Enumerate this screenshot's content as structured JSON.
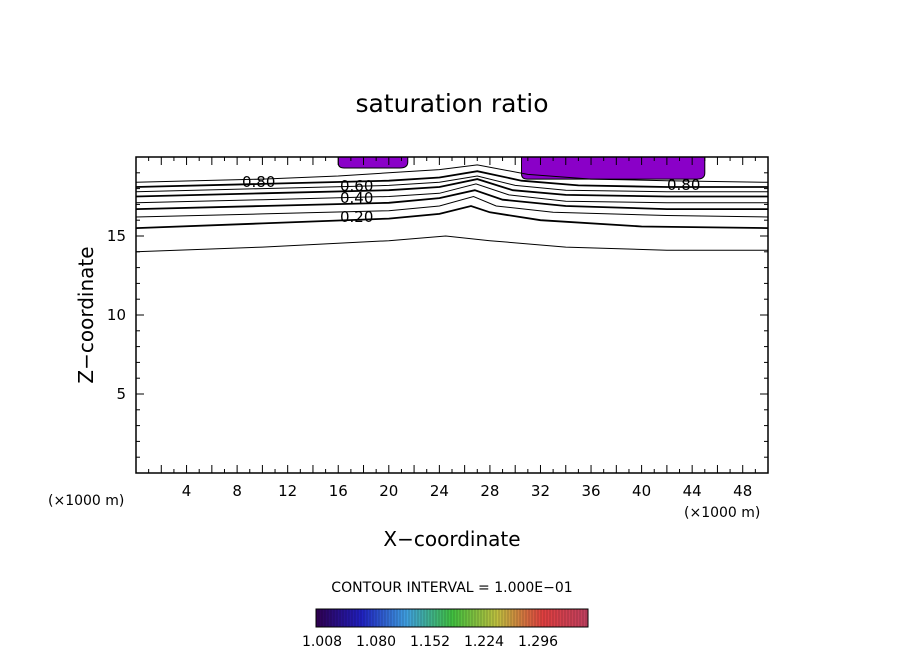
{
  "chart_data": {
    "type": "contour",
    "title": "saturation ratio",
    "xlabel": "X−coordinate",
    "ylabel": "Z−coordinate",
    "x_unit_left": "(×1000 m)",
    "x_unit_right": "(×1000 m)",
    "xlim": [
      0,
      50
    ],
    "ylim": [
      0,
      20
    ],
    "x_ticks": [
      4,
      8,
      12,
      16,
      20,
      24,
      28,
      32,
      36,
      40,
      44,
      48
    ],
    "y_ticks": [
      5,
      10,
      15
    ],
    "contour_interval_text": "CONTOUR INTERVAL = 1.000E−01",
    "contour_labels": [
      "0.80",
      "0.60",
      "0.40",
      "0.20",
      "0.80"
    ],
    "contours": [
      {
        "level": 0.1,
        "points": [
          [
            0,
            14.0
          ],
          [
            10,
            14.3
          ],
          [
            20,
            14.7
          ],
          [
            24.5,
            15.0
          ],
          [
            28,
            14.7
          ],
          [
            34,
            14.3
          ],
          [
            42,
            14.1
          ],
          [
            50,
            14.1
          ]
        ]
      },
      {
        "level": 0.2,
        "points": [
          [
            0,
            15.5
          ],
          [
            10,
            15.8
          ],
          [
            20,
            16.1
          ],
          [
            24,
            16.4
          ],
          [
            26.5,
            16.9
          ],
          [
            28,
            16.5
          ],
          [
            32,
            16.0
          ],
          [
            40,
            15.6
          ],
          [
            50,
            15.5
          ]
        ]
      },
      {
        "level": 0.3,
        "points": [
          [
            0,
            16.2
          ],
          [
            10,
            16.4
          ],
          [
            20,
            16.6
          ],
          [
            24,
            16.9
          ],
          [
            26.7,
            17.5
          ],
          [
            28.5,
            16.9
          ],
          [
            33,
            16.5
          ],
          [
            42,
            16.3
          ],
          [
            50,
            16.2
          ]
        ]
      },
      {
        "level": 0.4,
        "points": [
          [
            0,
            16.7
          ],
          [
            10,
            16.9
          ],
          [
            20,
            17.1
          ],
          [
            24,
            17.4
          ],
          [
            26.8,
            17.9
          ],
          [
            29,
            17.3
          ],
          [
            34,
            16.9
          ],
          [
            42,
            16.7
          ],
          [
            50,
            16.7
          ]
        ]
      },
      {
        "level": 0.5,
        "points": [
          [
            0,
            17.1
          ],
          [
            10,
            17.3
          ],
          [
            20,
            17.5
          ],
          [
            24,
            17.7
          ],
          [
            26.9,
            18.3
          ],
          [
            29.5,
            17.6
          ],
          [
            34,
            17.2
          ],
          [
            42,
            17.1
          ],
          [
            50,
            17.1
          ]
        ]
      },
      {
        "level": 0.6,
        "points": [
          [
            0,
            17.5
          ],
          [
            10,
            17.7
          ],
          [
            20,
            17.9
          ],
          [
            24,
            18.1
          ],
          [
            27,
            18.6
          ],
          [
            29.8,
            17.9
          ],
          [
            34,
            17.6
          ],
          [
            42,
            17.5
          ],
          [
            50,
            17.5
          ]
        ]
      },
      {
        "level": 0.7,
        "points": [
          [
            0,
            17.8
          ],
          [
            10,
            18.0
          ],
          [
            20,
            18.2
          ],
          [
            24,
            18.4
          ],
          [
            27,
            18.8
          ],
          [
            30,
            18.2
          ],
          [
            34,
            17.9
          ],
          [
            42,
            17.8
          ],
          [
            50,
            17.8
          ]
        ]
      },
      {
        "level": 0.8,
        "points": [
          [
            0,
            18.1
          ],
          [
            10,
            18.3
          ],
          [
            20,
            18.5
          ],
          [
            24,
            18.7
          ],
          [
            27,
            19.1
          ],
          [
            30.5,
            18.5
          ],
          [
            35,
            18.2
          ],
          [
            42,
            18.1
          ],
          [
            50,
            18.1
          ]
        ]
      },
      {
        "level": 0.9,
        "points": [
          [
            0,
            18.4
          ],
          [
            10,
            18.6
          ],
          [
            16,
            18.8
          ],
          [
            20,
            19.0
          ],
          [
            24,
            19.2
          ],
          [
            27,
            19.5
          ],
          [
            31,
            18.9
          ],
          [
            36,
            18.6
          ],
          [
            42,
            18.5
          ],
          [
            50,
            18.4
          ]
        ]
      }
    ],
    "shaded_regions": [
      {
        "x_range": [
          16,
          21.5
        ],
        "z_range": [
          19.3,
          20
        ],
        "color": "#8a00c8"
      },
      {
        "x_range": [
          30.5,
          45
        ],
        "z_range": [
          18.6,
          20
        ],
        "color": "#8a00c8"
      }
    ],
    "colorbar": {
      "ticks": [
        "1.008",
        "1.080",
        "1.152",
        "1.224",
        "1.296"
      ],
      "colors": [
        "#300050",
        "#2020c0",
        "#40a0e0",
        "#40c040",
        "#c0c040",
        "#e04040",
        "#c04060"
      ]
    }
  }
}
